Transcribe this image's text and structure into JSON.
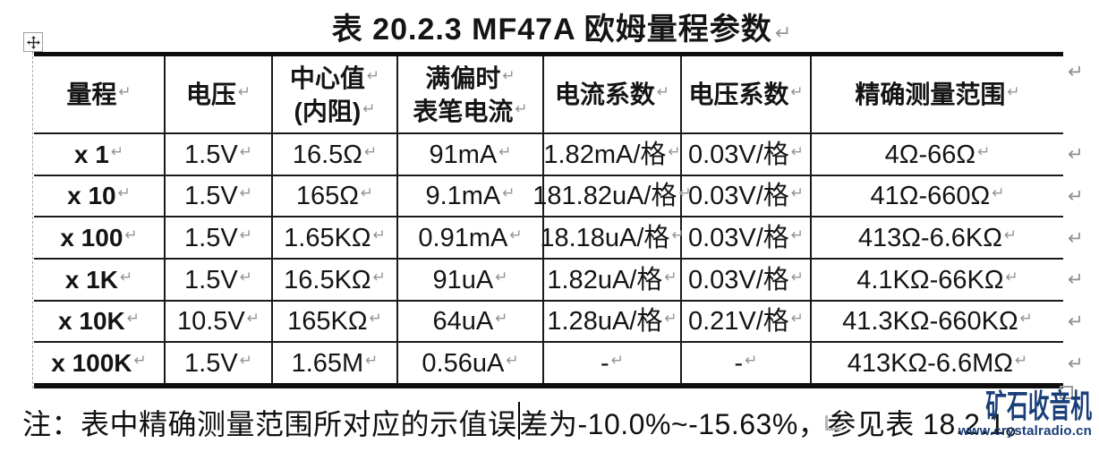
{
  "title": {
    "text": "表 20.2.3 MF47A 欧姆量程参数"
  },
  "marks": {
    "pilcrow": "↵"
  },
  "table": {
    "headers": [
      {
        "lines": [
          "量程"
        ]
      },
      {
        "lines": [
          "电压"
        ]
      },
      {
        "lines": [
          "中心值",
          "(内阻)"
        ]
      },
      {
        "lines": [
          "满偏时",
          "表笔电流"
        ]
      },
      {
        "lines": [
          "电流系数"
        ]
      },
      {
        "lines": [
          "电压系数"
        ]
      },
      {
        "lines": [
          "精确测量范围"
        ]
      }
    ],
    "rows": [
      [
        "x 1",
        "1.5V",
        "16.5Ω",
        "91mA",
        "1.82mA/格",
        "0.03V/格",
        "4Ω-66Ω"
      ],
      [
        "x 10",
        "1.5V",
        "165Ω",
        "9.1mA",
        "181.82uA/格",
        "0.03V/格",
        "41Ω-660Ω"
      ],
      [
        "x 100",
        "1.5V",
        "1.65KΩ",
        "0.91mA",
        "18.18uA/格",
        "0.03V/格",
        "413Ω-6.6KΩ"
      ],
      [
        "x 1K",
        "1.5V",
        "16.5KΩ",
        "91uA",
        "1.82uA/格",
        "0.03V/格",
        "4.1KΩ-66KΩ"
      ],
      [
        "x 10K",
        "10.5V",
        "165KΩ",
        "64uA",
        "1.28uA/格",
        "0.21V/格",
        "41.3KΩ-660KΩ"
      ],
      [
        "x 100K",
        "1.5V",
        "1.65M",
        "0.56uA",
        "-",
        "-",
        "413KΩ-6.6MΩ"
      ]
    ]
  },
  "note": {
    "before_caret": "注：表中精确测量范围所对应的示值误",
    "after_caret": "差为-10.0%~-15.63%，参见表 18.2.1。"
  },
  "watermark": {
    "brand": "矿石收音机",
    "url": "www.crystalradio.cn",
    "color": "#1a3e78"
  }
}
